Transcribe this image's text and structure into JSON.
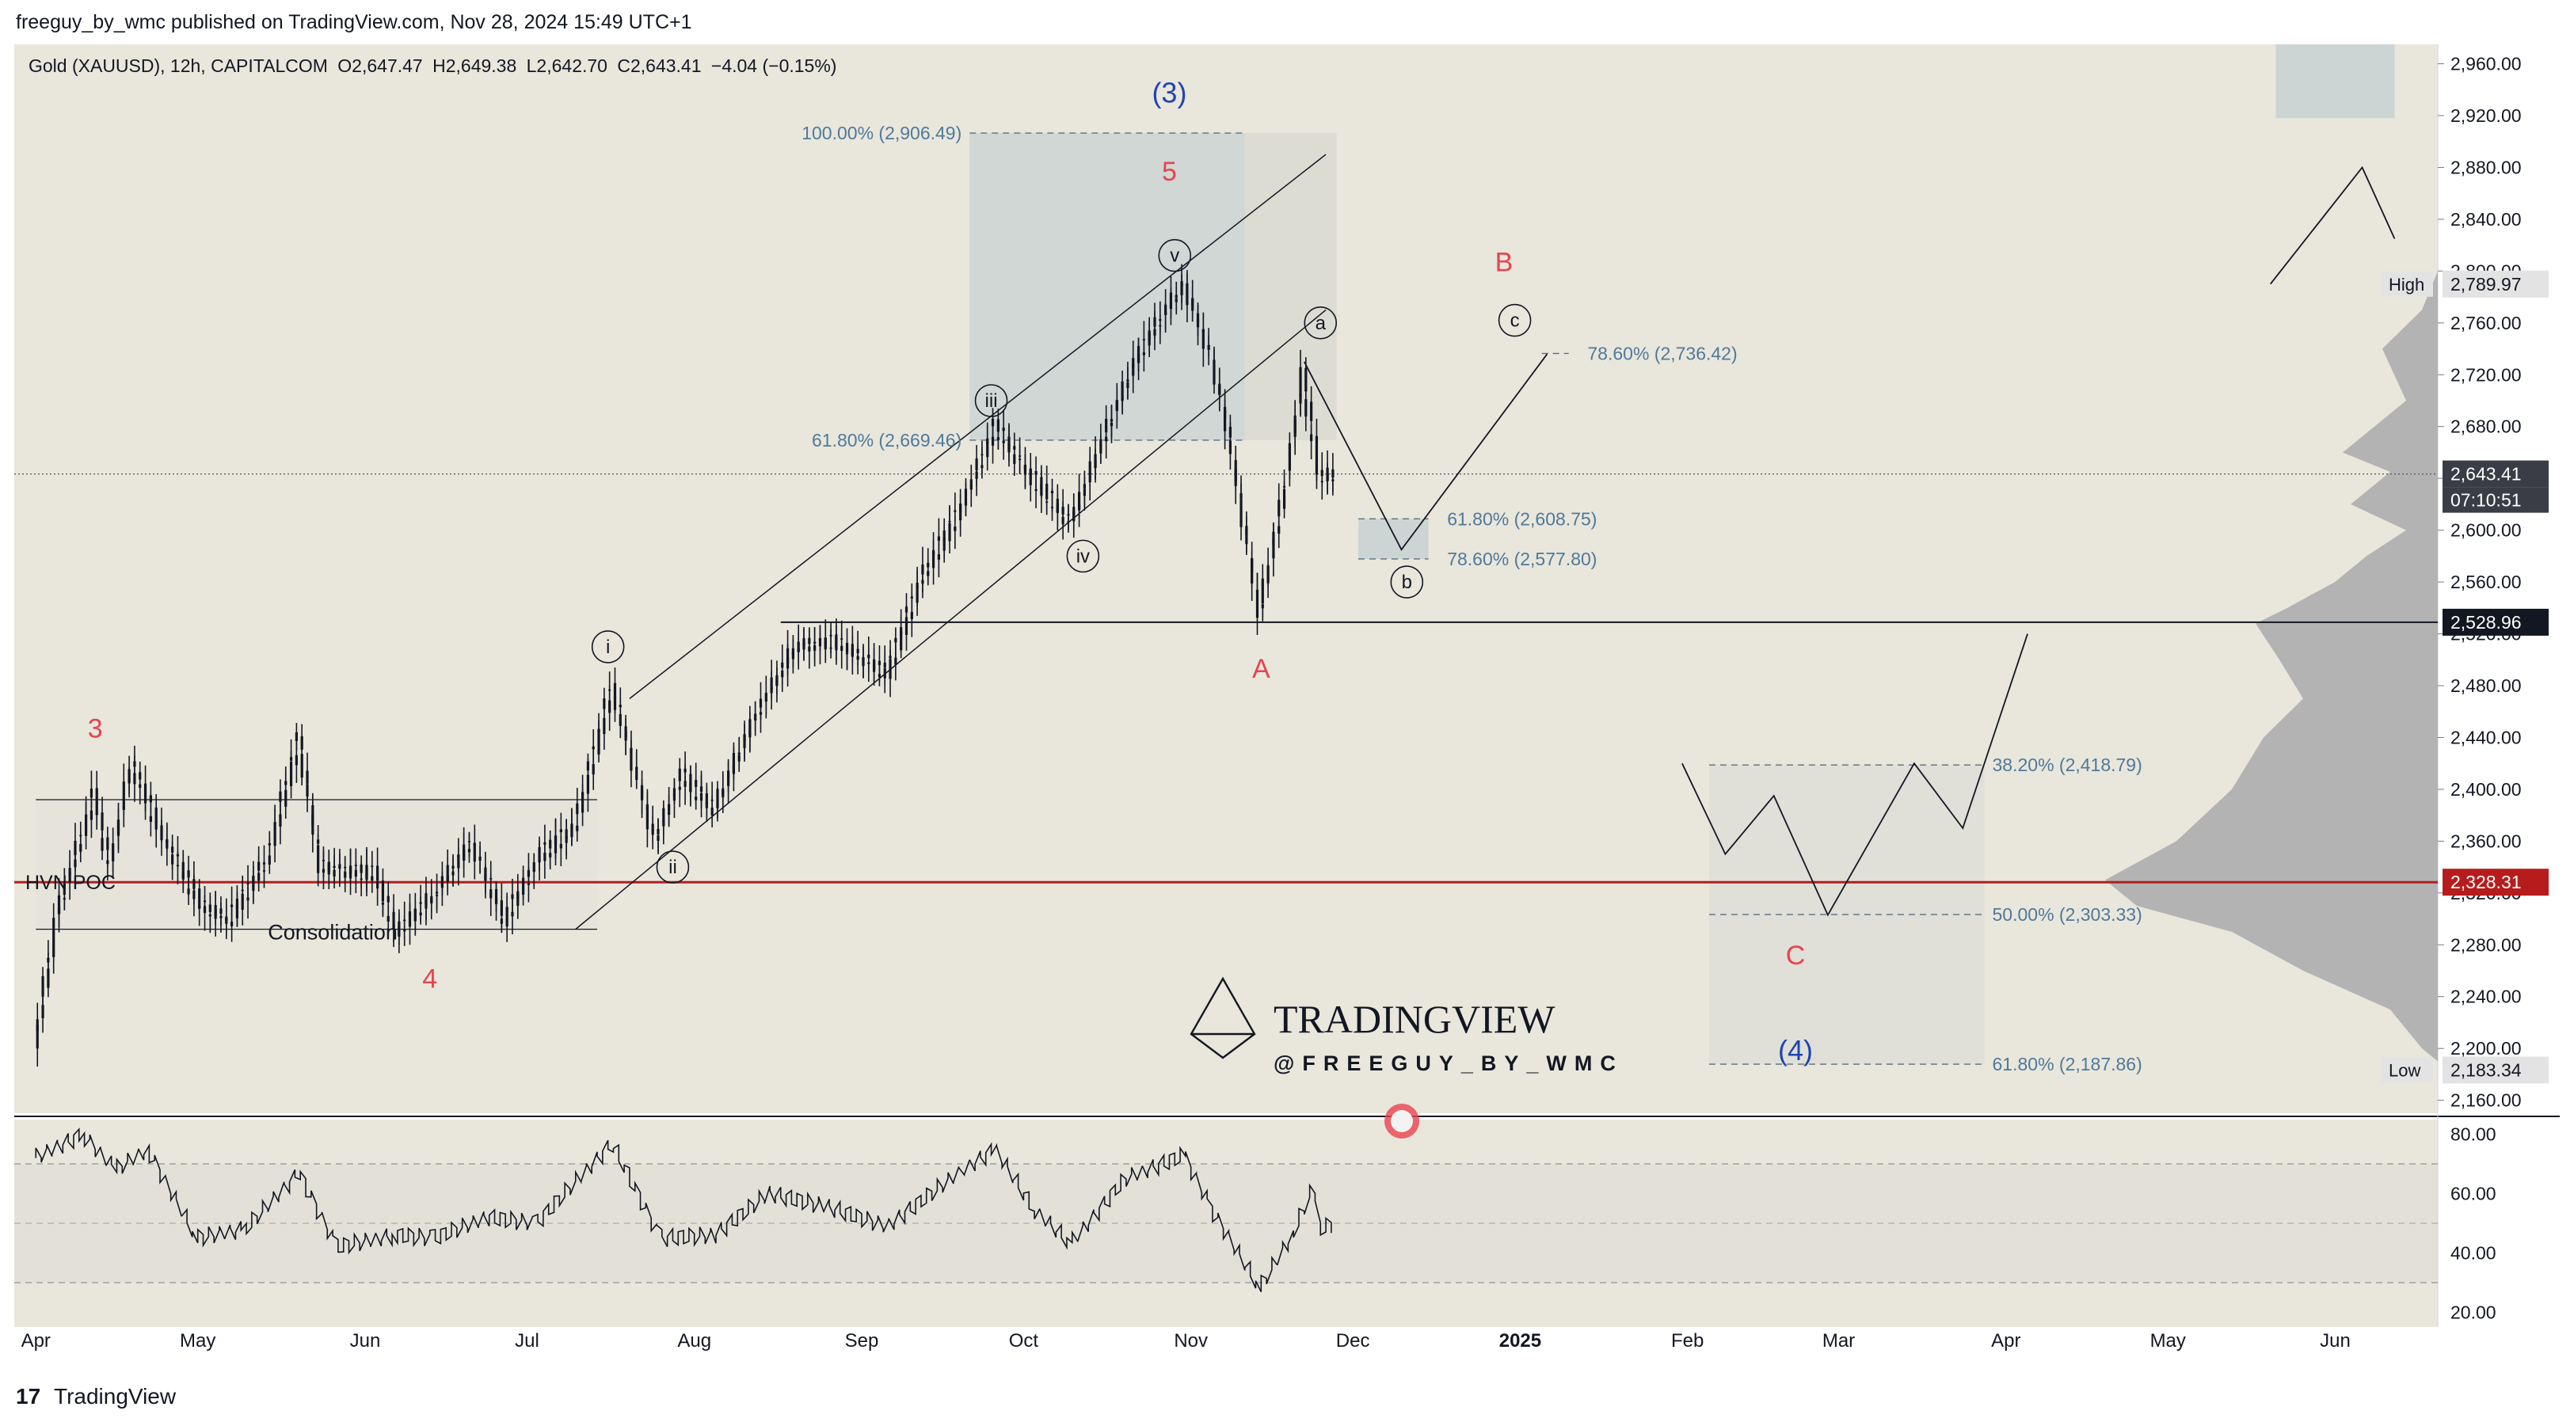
{
  "header": {
    "published_line": "freeguy_by_wmc published on TradingView.com, Nov 28, 2024 15:49 UTC+1"
  },
  "symbol_legend": {
    "name": "Gold (XAUUSD), 12h, CAPITALCOM",
    "open": "O2,647.47",
    "high": "H2,649.38",
    "low": "L2,642.70",
    "close": "C2,643.41",
    "change": "−4.04 (−0.15%)"
  },
  "footer": {
    "logo_mark": "17",
    "brand": "TradingView"
  },
  "watermark": {
    "title": "TRADINGVIEW",
    "handle": "@FREEGUY_BY_WMC"
  },
  "colors": {
    "background": "#e9e6dc",
    "candles": "#131722",
    "wave_red": "#e8434f",
    "wave_blue": "#1f45b3",
    "fib_text": "#4f7a9a",
    "poc_line": "#b71c1c",
    "volume_profile": "#a9a9ad",
    "fib_box": "#cdd5d4"
  },
  "chart_data": [
    {
      "type": "line",
      "title": "Gold (XAUUSD), 12h, CAPITALCOM",
      "x_axis": {
        "ticks": [
          "Apr",
          "May",
          "Jun",
          "Jul",
          "Aug",
          "Sep",
          "Oct",
          "Nov",
          "Dec",
          "2025",
          "Feb",
          "Mar",
          "Apr",
          "May",
          "Jun"
        ]
      },
      "y_axis": {
        "ylim": [
          2150,
          2975
        ],
        "ticks": [
          "2,160.00",
          "2,200.00",
          "2,240.00",
          "2,280.00",
          "2,320.00",
          "2,360.00",
          "2,400.00",
          "2,440.00",
          "2,480.00",
          "2,520.00",
          "2,560.00",
          "2,600.00",
          "2,640.00",
          "2,680.00",
          "2,720.00",
          "2,760.00",
          "2,800.00",
          "2,840.00",
          "2,880.00",
          "2,920.00",
          "2,960.00"
        ]
      },
      "price_path": [
        [
          "2024-04-01",
          2200
        ],
        [
          "2024-04-05",
          2300
        ],
        [
          "2024-04-12",
          2395
        ],
        [
          "2024-04-15",
          2340
        ],
        [
          "2024-04-19",
          2420
        ],
        [
          "2024-04-24",
          2370
        ],
        [
          "2024-05-02",
          2310
        ],
        [
          "2024-05-07",
          2300
        ],
        [
          "2024-05-14",
          2345
        ],
        [
          "2024-05-20",
          2440
        ],
        [
          "2024-05-24",
          2340
        ],
        [
          "2024-06-03",
          2335
        ],
        [
          "2024-06-07",
          2290
        ],
        [
          "2024-06-14",
          2318
        ],
        [
          "2024-06-21",
          2360
        ],
        [
          "2024-06-27",
          2300
        ],
        [
          "2024-07-04",
          2350
        ],
        [
          "2024-07-10",
          2370
        ],
        [
          "2024-07-17",
          2480
        ],
        [
          "2024-07-25",
          2360
        ],
        [
          "2024-07-30",
          2410
        ],
        [
          "2024-08-05",
          2385
        ],
        [
          "2024-08-13",
          2460
        ],
        [
          "2024-08-20",
          2510
        ],
        [
          "2024-08-27",
          2515
        ],
        [
          "2024-09-06",
          2490
        ],
        [
          "2024-09-12",
          2560
        ],
        [
          "2024-09-20",
          2620
        ],
        [
          "2024-09-26",
          2680
        ],
        [
          "2024-10-03",
          2640
        ],
        [
          "2024-10-10",
          2605
        ],
        [
          "2024-10-16",
          2670
        ],
        [
          "2024-10-23",
          2740
        ],
        [
          "2024-10-31",
          2790
        ],
        [
          "2024-11-05",
          2735
        ],
        [
          "2024-11-08",
          2680
        ],
        [
          "2024-11-14",
          2536
        ],
        [
          "2024-11-19",
          2640
        ],
        [
          "2024-11-22",
          2720
        ],
        [
          "2024-11-25",
          2640
        ],
        [
          "2024-11-28",
          2643.41
        ]
      ],
      "rsi": {
        "levels": [
          "80.00",
          "60.00",
          "40.00",
          "20.00"
        ],
        "bands": [
          70,
          50,
          30
        ],
        "path": [
          [
            "2024-04-01",
            72
          ],
          [
            "2024-04-10",
            80
          ],
          [
            "2024-04-16",
            68
          ],
          [
            "2024-04-22",
            75
          ],
          [
            "2024-05-01",
            45
          ],
          [
            "2024-05-10",
            48
          ],
          [
            "2024-05-20",
            67
          ],
          [
            "2024-05-27",
            42
          ],
          [
            "2024-06-07",
            46
          ],
          [
            "2024-06-14",
            45
          ],
          [
            "2024-06-24",
            52
          ],
          [
            "2024-07-03",
            50
          ],
          [
            "2024-07-17",
            77
          ],
          [
            "2024-07-26",
            45
          ],
          [
            "2024-08-05",
            46
          ],
          [
            "2024-08-15",
            60
          ],
          [
            "2024-08-25",
            56
          ],
          [
            "2024-09-06",
            49
          ],
          [
            "2024-09-20",
            68
          ],
          [
            "2024-09-26",
            75
          ],
          [
            "2024-10-03",
            55
          ],
          [
            "2024-10-10",
            43
          ],
          [
            "2024-10-20",
            65
          ],
          [
            "2024-10-31",
            73
          ],
          [
            "2024-11-05",
            55
          ],
          [
            "2024-11-14",
            28
          ],
          [
            "2024-11-20",
            46
          ],
          [
            "2024-11-24",
            62
          ],
          [
            "2024-11-25",
            48
          ],
          [
            "2024-11-28",
            50
          ]
        ]
      }
    }
  ],
  "fib_levels": [
    {
      "label": "100.00% (2,906.49)",
      "price": 2906.49
    },
    {
      "label": "61.80% (2,669.46)",
      "price": 2669.46
    },
    {
      "label": "78.60% (2,736.42)",
      "price": 2736.42
    },
    {
      "label": "61.80% (2,608.75)",
      "price": 2608.75
    },
    {
      "label": "78.60% (2,577.80)",
      "price": 2577.8
    },
    {
      "label": "38.20% (2,418.79)",
      "price": 2418.79
    },
    {
      "label": "50.00% (2,303.33)",
      "price": 2303.33
    },
    {
      "label": "61.80% (2,187.86)",
      "price": 2187.86
    }
  ],
  "wave_labels": {
    "wave_3": "3",
    "wave_4": "4",
    "wave_5": "5",
    "wave_iii_big": "(3)",
    "wave_iv_big": "(4)",
    "wave_a": "A",
    "wave_b": "B",
    "wave_c": "C",
    "sub_i": "i",
    "sub_ii": "ii",
    "sub_iii": "iii",
    "sub_iv": "iv",
    "sub_v": "v",
    "sub_a": "a",
    "sub_b": "b",
    "sub_c": "c"
  },
  "annotations": {
    "consolidation": "Consolidation",
    "hvn_poc": "HVN POC",
    "high_label": "High",
    "low_label": "Low"
  },
  "price_tags": {
    "high": "2,789.97",
    "last_price": "2,643.41",
    "countdown": "07:10:51",
    "support": "2,528.96",
    "poc": "2,328.31",
    "low": "2,183.34"
  }
}
